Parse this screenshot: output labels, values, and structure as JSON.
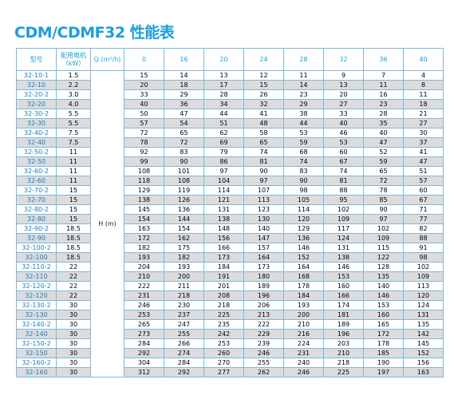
{
  "header": {
    "title": "CDM/CDMF32 性能表"
  },
  "table": {
    "columns": [
      "型号",
      "配用电机（kW）",
      "Q (m³/h)",
      "0",
      "16",
      "20",
      "24",
      "28",
      "32",
      "36",
      "40"
    ],
    "h_label": "H (m)",
    "rows": [
      [
        "32-10-1",
        "1.5",
        "15",
        "14",
        "13",
        "12",
        "11",
        "9",
        "7",
        "4"
      ],
      [
        "32-10",
        "2.2",
        "20",
        "18",
        "17",
        "15",
        "14",
        "13",
        "11",
        "8"
      ],
      [
        "32-20-2",
        "3.0",
        "33",
        "29",
        "28",
        "26",
        "23",
        "20",
        "16",
        "11"
      ],
      [
        "32-20",
        "4.0",
        "40",
        "36",
        "34",
        "32",
        "29",
        "27",
        "23",
        "18"
      ],
      [
        "32-30-2",
        "5.5",
        "50",
        "47",
        "44",
        "41",
        "38",
        "33",
        "28",
        "21"
      ],
      [
        "32-30",
        "5.5",
        "57",
        "54",
        "51",
        "48",
        "44",
        "40",
        "35",
        "27"
      ],
      [
        "32-40-2",
        "7.5",
        "72",
        "65",
        "62",
        "58",
        "53",
        "46",
        "40",
        "30"
      ],
      [
        "32-40",
        "7.5",
        "78",
        "72",
        "69",
        "65",
        "59",
        "53",
        "47",
        "37"
      ],
      [
        "32-50-2",
        "11",
        "92",
        "83",
        "79",
        "74",
        "68",
        "60",
        "52",
        "41"
      ],
      [
        "32-50",
        "11",
        "99",
        "90",
        "86",
        "81",
        "74",
        "67",
        "59",
        "47"
      ],
      [
        "32-60-2",
        "11",
        "108",
        "101",
        "97",
        "90",
        "83",
        "74",
        "65",
        "51"
      ],
      [
        "32-60",
        "11",
        "118",
        "108",
        "104",
        "97",
        "90",
        "81",
        "72",
        "57"
      ],
      [
        "32-70-2",
        "15",
        "129",
        "119",
        "114",
        "107",
        "98",
        "88",
        "78",
        "60"
      ],
      [
        "32-70",
        "15",
        "138",
        "126",
        "121",
        "113",
        "105",
        "95",
        "85",
        "67"
      ],
      [
        "32-80-2",
        "15",
        "145",
        "136",
        "131",
        "123",
        "114",
        "102",
        "90",
        "71"
      ],
      [
        "32-80",
        "15",
        "154",
        "144",
        "138",
        "130",
        "120",
        "109",
        "97",
        "77"
      ],
      [
        "32-90-2",
        "18.5",
        "163",
        "154",
        "148",
        "140",
        "129",
        "117",
        "102",
        "82"
      ],
      [
        "32-90",
        "18.5",
        "172",
        "162",
        "156",
        "147",
        "136",
        "124",
        "109",
        "88"
      ],
      [
        "32-100-2",
        "18.5",
        "182",
        "175",
        "166",
        "157",
        "146",
        "131",
        "115",
        "91"
      ],
      [
        "32-100",
        "18.5",
        "193",
        "182",
        "173",
        "164",
        "152",
        "138",
        "122",
        "98"
      ],
      [
        "32-110-2",
        "22",
        "204",
        "193",
        "184",
        "173",
        "164",
        "146",
        "128",
        "102"
      ],
      [
        "32-110",
        "22",
        "210",
        "200",
        "191",
        "180",
        "168",
        "153",
        "135",
        "109"
      ],
      [
        "32-120-2",
        "22",
        "222",
        "211",
        "201",
        "189",
        "178",
        "160",
        "140",
        "113"
      ],
      [
        "32-120",
        "22",
        "231",
        "218",
        "208",
        "196",
        "184",
        "166",
        "146",
        "120"
      ],
      [
        "32-130-2",
        "30",
        "246",
        "230",
        "218",
        "206",
        "193",
        "174",
        "153",
        "124"
      ],
      [
        "32-130",
        "30",
        "253",
        "237",
        "225",
        "213",
        "200",
        "181",
        "160",
        "131"
      ],
      [
        "32-140-2",
        "30",
        "265",
        "247",
        "235",
        "222",
        "210",
        "189",
        "165",
        "135"
      ],
      [
        "32-140",
        "30",
        "273",
        "255",
        "242",
        "229",
        "216",
        "196",
        "172",
        "142"
      ],
      [
        "32-150-2",
        "30",
        "284",
        "266",
        "253",
        "239",
        "224",
        "203",
        "178",
        "145"
      ],
      [
        "32-150",
        "30",
        "292",
        "274",
        "260",
        "246",
        "231",
        "210",
        "185",
        "152"
      ],
      [
        "32-160-2",
        "30",
        "304",
        "284",
        "270",
        "255",
        "240",
        "218",
        "190",
        "156"
      ],
      [
        "32-160",
        "30",
        "312",
        "292",
        "277",
        "262",
        "246",
        "225",
        "197",
        "163"
      ]
    ]
  }
}
